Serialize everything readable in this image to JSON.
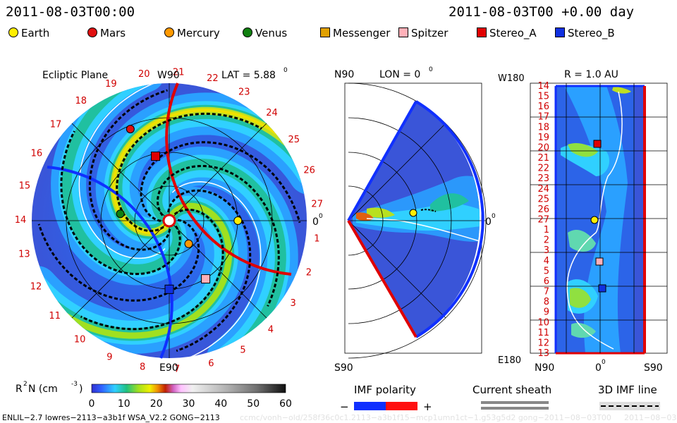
{
  "header": {
    "date_left": "2011-08-03T00:00",
    "date_right": "2011-08-03T00 +0.00 day"
  },
  "legend": [
    {
      "name": "Earth",
      "color": "#ffee00",
      "shape": "circle"
    },
    {
      "name": "Mars",
      "color": "#e01010",
      "shape": "circle"
    },
    {
      "name": "Mercury",
      "color": "#ff9900",
      "shape": "circle"
    },
    {
      "name": "Venus",
      "color": "#108010",
      "shape": "circle"
    },
    {
      "name": "Messenger",
      "color": "#e0a000",
      "shape": "square"
    },
    {
      "name": "Spitzer",
      "color": "#ffb0b8",
      "shape": "square"
    },
    {
      "name": "Stereo_A",
      "color": "#e00000",
      "shape": "square"
    },
    {
      "name": "Stereo_B",
      "color": "#1030e0",
      "shape": "square"
    }
  ],
  "chart_data": [
    {
      "type": "heatmap",
      "title": "Ecliptic Plane",
      "lat_label": "LAT = 5.88",
      "lat_sup": "0",
      "top_label": "W90",
      "bottom_label": "E90",
      "right_label": "0",
      "right_sup": "0",
      "rim_labels": [
        "1",
        "2",
        "3",
        "4",
        "5",
        "6",
        "7",
        "8",
        "9",
        "10",
        "11",
        "12",
        "13",
        "14",
        "15",
        "16",
        "17",
        "18",
        "19",
        "20",
        "21",
        "22",
        "23",
        "24",
        "25",
        "26",
        "27"
      ],
      "bodies": [
        {
          "name": "Earth",
          "angle_deg": 0,
          "radius_au": 1.0
        },
        {
          "name": "Mars",
          "angle_deg": 113,
          "radius_au": 1.45
        },
        {
          "name": "Venus",
          "angle_deg": 172,
          "radius_au": 0.72
        },
        {
          "name": "Mercury",
          "angle_deg": -50,
          "radius_au": 0.44
        },
        {
          "name": "Stereo_A",
          "angle_deg": 102,
          "radius_au": 0.96
        },
        {
          "name": "Stereo_B",
          "angle_deg": -90,
          "radius_au": 1.0
        },
        {
          "name": "Spitzer",
          "angle_deg": -58,
          "radius_au": 1.0
        }
      ]
    },
    {
      "type": "heatmap",
      "title": "LON = 0",
      "title_sup": "0",
      "top_label": "N90",
      "bottom_label": "S90",
      "right_label": "0",
      "right_sup": "0"
    },
    {
      "type": "heatmap",
      "title": "R = 1.0 AU",
      "top_left_label": "W180",
      "bottom_left_label": "E180",
      "x_tick_labels": [
        "N90",
        "0",
        "S90"
      ],
      "x_mid_sup": "0",
      "y_tick_labels": [
        "14",
        "15",
        "16",
        "17",
        "18",
        "19",
        "20",
        "21",
        "22",
        "23",
        "24",
        "25",
        "26",
        "27",
        "1",
        "2",
        "3",
        "4",
        "5",
        "6",
        "7",
        "8",
        "9",
        "10",
        "11",
        "12",
        "13"
      ]
    }
  ],
  "colorbar": {
    "label": "R",
    "label_sup": "2",
    "label_rest": " N (cm",
    "label_exp": "-3",
    "label_close": ")",
    "ticks": [
      "0",
      "10",
      "20",
      "30",
      "40",
      "50",
      "60"
    ],
    "min": 0,
    "max": 60
  },
  "imf_polarity": {
    "title": "IMF polarity",
    "minus": "−",
    "plus": "+"
  },
  "current_sheath": {
    "title": "Current sheath"
  },
  "imf_line": {
    "title": "3D IMF line"
  },
  "footer": {
    "left": "ENLIL−2.7 lowres−2113−a3b1f WSA_V2.2 GONG−2113",
    "right_faint": "ccmc/vonh−old/258f36c0c1.2113−a3b1f15−mcp1umn1ct−1.g53g5d2 gong−2011−08−03T00",
    "right_date": "2011−08−03"
  }
}
